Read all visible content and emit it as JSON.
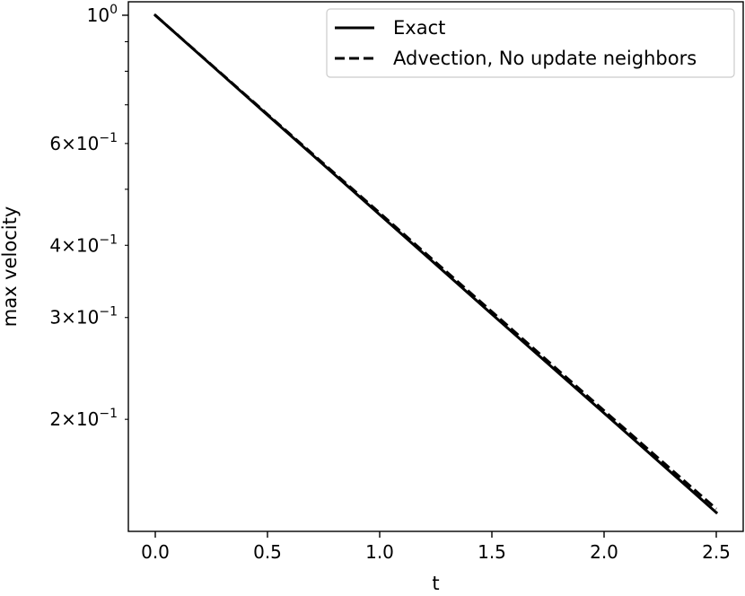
{
  "chart_data": {
    "type": "line",
    "xlabel": "t",
    "ylabel": "max velocity",
    "xlim": [
      -0.12,
      2.62
    ],
    "ylim": [
      0.128,
      1.055
    ],
    "yscale": "log",
    "grid": false,
    "legend_position": "top-right",
    "x_ticks": [
      {
        "value": 0.0,
        "label": "0.0"
      },
      {
        "value": 0.5,
        "label": "0.5"
      },
      {
        "value": 1.0,
        "label": "1.0"
      },
      {
        "value": 1.5,
        "label": "1.5"
      },
      {
        "value": 2.0,
        "label": "2.0"
      },
      {
        "value": 2.5,
        "label": "2.5"
      }
    ],
    "y_major_ticks": [
      {
        "value": 1.0,
        "mantissa": "",
        "exponent": "0"
      }
    ],
    "y_minor_ticks": [
      {
        "value": 0.6,
        "mantissa": "6",
        "exponent": "−1"
      },
      {
        "value": 0.4,
        "mantissa": "4",
        "exponent": "−1"
      },
      {
        "value": 0.3,
        "mantissa": "3",
        "exponent": "−1"
      },
      {
        "value": 0.2,
        "mantissa": "2",
        "exponent": "−1"
      }
    ],
    "y_unlabeled_minor_ticks": [
      0.9,
      0.8,
      0.7,
      0.5
    ],
    "series": [
      {
        "name": "Exact",
        "style": "solid",
        "color": "#000000",
        "x": [
          0.0,
          0.5,
          1.0,
          1.5,
          2.0,
          2.5
        ],
        "y": [
          1.0,
          0.672,
          0.452,
          0.304,
          0.205,
          0.138
        ]
      },
      {
        "name": "Advection, No update neighbors",
        "style": "dashed",
        "color": "#000000",
        "x": [
          0.0,
          0.5,
          1.0,
          1.5,
          2.0,
          2.5
        ],
        "y": [
          1.0,
          0.674,
          0.455,
          0.307,
          0.207,
          0.14
        ]
      }
    ]
  }
}
